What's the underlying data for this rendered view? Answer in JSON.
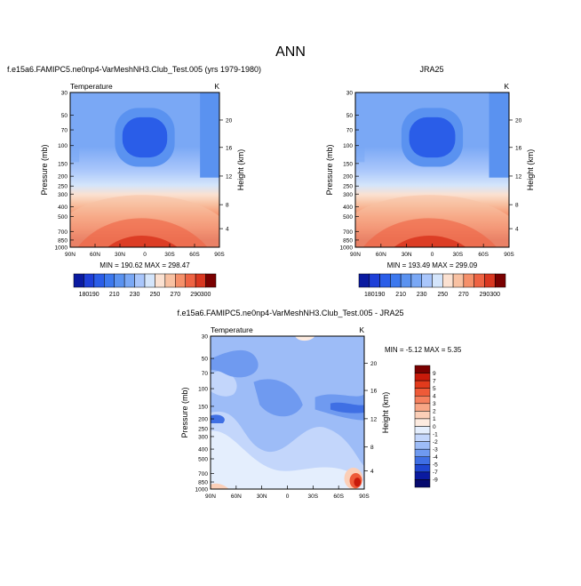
{
  "figure": {
    "title": "ANN"
  },
  "chart_data": [
    {
      "type": "heatmap",
      "title": "f.e15a6.FAMIPC5.ne0np4-VarMeshNH3.Club_Test.005 (yrs 1979-1980)",
      "variable_label": "Temperature",
      "units_label": "K",
      "ylabel": "Pressure (mb)",
      "ylabel_right": "Height (km)",
      "x_ticks": [
        "90N",
        "60N",
        "30N",
        "0",
        "30S",
        "60S",
        "90S"
      ],
      "y_ticks": [
        "30",
        "50",
        "70",
        "100",
        "150",
        "200",
        "250",
        "300",
        "400",
        "500",
        "700",
        "850",
        "1000"
      ],
      "y_ticks_right": [
        "20",
        "16",
        "12",
        "8",
        "4"
      ],
      "stats": "MIN = 190.62   MAX = 298.47",
      "min": 190.62,
      "max": 298.47,
      "colorbar": {
        "levels": [
          "180",
          "190",
          "200",
          "210",
          "220",
          "230",
          "240",
          "250",
          "260",
          "270",
          "280",
          "290",
          "300"
        ],
        "shown_labels": [
          "180",
          "190",
          "210",
          "230",
          "250",
          "270",
          "290",
          "300"
        ],
        "colors": [
          "#0a1aa0",
          "#1e3fd8",
          "#2a5de8",
          "#3c78ee",
          "#5a92f0",
          "#7aa8f5",
          "#a9c6fb",
          "#d4e5fb",
          "#fbe1d1",
          "#f8c1a2",
          "#f5906a",
          "#ee6343",
          "#d93720",
          "#7a0000"
        ]
      }
    },
    {
      "type": "heatmap",
      "title": "JRA25",
      "units_label": "K",
      "ylabel": "Pressure (mb)",
      "ylabel_right": "Height (km)",
      "x_ticks": [
        "90N",
        "60N",
        "30N",
        "0",
        "30S",
        "60S",
        "90S"
      ],
      "y_ticks": [
        "30",
        "50",
        "70",
        "100",
        "150",
        "200",
        "250",
        "300",
        "400",
        "500",
        "700",
        "850",
        "1000"
      ],
      "y_ticks_right": [
        "20",
        "16",
        "12",
        "8",
        "4"
      ],
      "stats": "MIN = 193.49   MAX = 299.09",
      "min": 193.49,
      "max": 299.09,
      "colorbar": {
        "levels": [
          "180",
          "190",
          "200",
          "210",
          "220",
          "230",
          "240",
          "250",
          "260",
          "270",
          "280",
          "290",
          "300"
        ],
        "shown_labels": [
          "180",
          "190",
          "210",
          "230",
          "250",
          "270",
          "290",
          "300"
        ],
        "colors": [
          "#0a1aa0",
          "#1e3fd8",
          "#2a5de8",
          "#3c78ee",
          "#5a92f0",
          "#7aa8f5",
          "#a9c6fb",
          "#d4e5fb",
          "#fbe1d1",
          "#f8c1a2",
          "#f5906a",
          "#ee6343",
          "#d93720",
          "#7a0000"
        ]
      }
    },
    {
      "type": "heatmap",
      "title": "f.e15a6.FAMIPC5.ne0np4-VarMeshNH3.Club_Test.005 - JRA25",
      "variable_label": "Temperature",
      "units_label": "K",
      "ylabel": "Pressure (mb)",
      "ylabel_right": "Height (km)",
      "x_ticks": [
        "90N",
        "60N",
        "30N",
        "0",
        "30S",
        "60S",
        "90S"
      ],
      "y_ticks": [
        "30",
        "50",
        "70",
        "100",
        "150",
        "200",
        "250",
        "300",
        "400",
        "500",
        "700",
        "850",
        "1000"
      ],
      "y_ticks_right": [
        "20",
        "16",
        "12",
        "8",
        "4"
      ],
      "stats": "MIN = -5.12   MAX =  5.35",
      "min": -5.12,
      "max": 5.35,
      "colorbar": {
        "labels_top_to_bottom": [
          "9",
          "7",
          "5",
          "4",
          "3",
          "2",
          "1",
          "0",
          "-1",
          "-2",
          "-3",
          "-4",
          "-5",
          "-7",
          "-9"
        ],
        "colors_top_to_bottom": [
          "#7a0000",
          "#c81a0a",
          "#e23a1c",
          "#ee5a38",
          "#f5805e",
          "#f8a686",
          "#fbcfb8",
          "#fdebe0",
          "#e4eefd",
          "#c3d6fb",
          "#9dbcf7",
          "#6f9af0",
          "#3f6fe4",
          "#1f46d0",
          "#0a1aa0",
          "#060a6e"
        ]
      }
    }
  ]
}
